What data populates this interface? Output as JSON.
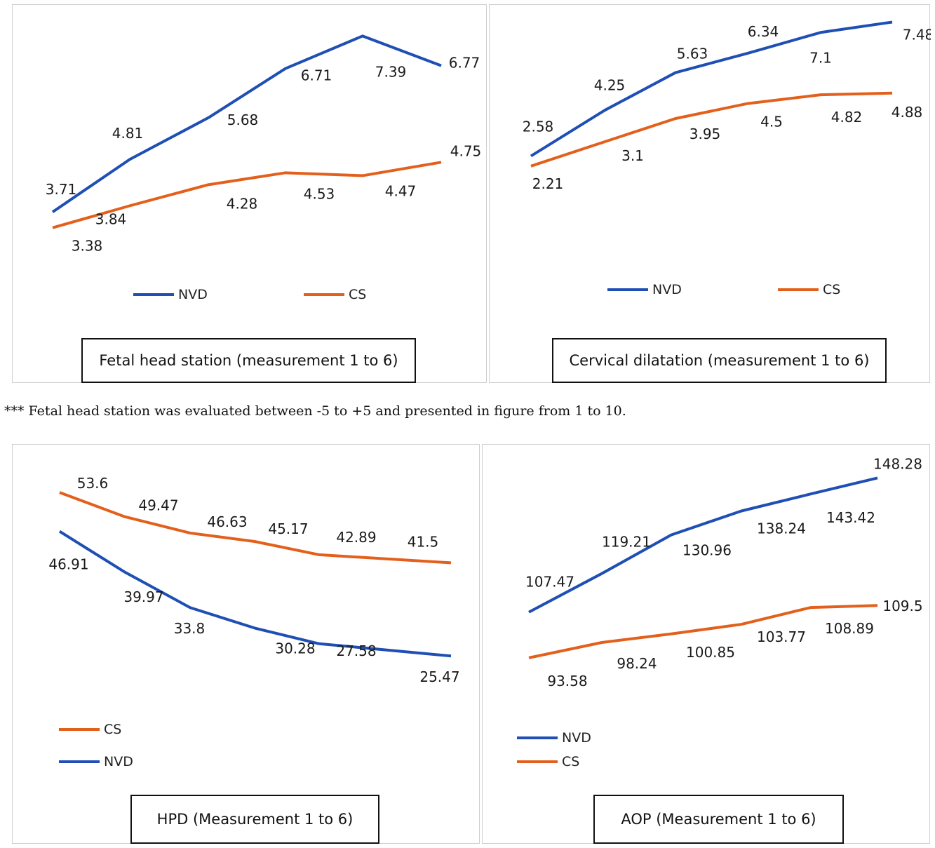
{
  "footnote": "*** Fetal head station was evaluated between -5 to +5 and presented in figure from 1 to 10.",
  "colors": {
    "NVD": "#1f4fb4",
    "CS": "#e3601c"
  },
  "chart_data": [
    {
      "id": "fetal",
      "type": "line",
      "title": "Fetal head station (measurement 1 to 6)",
      "x": [
        1,
        2,
        3,
        4,
        5,
        6
      ],
      "series": [
        {
          "name": "NVD",
          "values": [
            3.71,
            4.81,
            5.68,
            6.71,
            7.39,
            6.77
          ]
        },
        {
          "name": "CS",
          "values": [
            3.38,
            3.84,
            4.28,
            4.53,
            4.47,
            4.75
          ]
        }
      ],
      "legend": [
        "NVD",
        "CS"
      ],
      "legend_placement": "bottom",
      "grid": false
    },
    {
      "id": "cervical",
      "type": "line",
      "title": "Cervical dilatation (measurement 1 to 6)",
      "x": [
        1,
        2,
        3,
        4,
        5,
        6
      ],
      "series": [
        {
          "name": "NVD",
          "values": [
            2.58,
            4.25,
            5.63,
            6.34,
            7.1,
            7.48
          ]
        },
        {
          "name": "CS",
          "values": [
            2.21,
            3.1,
            3.95,
            4.5,
            4.82,
            4.88
          ]
        }
      ],
      "legend": [
        "NVD",
        "CS"
      ],
      "legend_placement": "bottom",
      "grid": false
    },
    {
      "id": "hpd",
      "type": "line",
      "title": "HPD (Measurement 1 to 6)",
      "x": [
        1,
        2,
        3,
        4,
        5,
        6
      ],
      "series": [
        {
          "name": "NVD",
          "values": [
            46.91,
            39.97,
            33.8,
            30.28,
            27.58,
            25.47
          ]
        },
        {
          "name": "CS",
          "values": [
            53.6,
            49.47,
            46.63,
            45.17,
            42.89,
            41.5
          ]
        }
      ],
      "legend": [
        "CS",
        "NVD"
      ],
      "legend_placement": "bottom-left",
      "grid": false
    },
    {
      "id": "aop",
      "type": "line",
      "title": "AOP (Measurement 1 to 6)",
      "x": [
        1,
        2,
        3,
        4,
        5,
        6
      ],
      "series": [
        {
          "name": "NVD",
          "values": [
            107.47,
            119.21,
            130.96,
            138.24,
            143.42,
            148.28
          ]
        },
        {
          "name": "CS",
          "values": [
            93.58,
            98.24,
            100.85,
            103.77,
            108.89,
            109.5
          ]
        }
      ],
      "legend": [
        "NVD",
        "CS"
      ],
      "legend_placement": "bottom-left",
      "grid": false
    }
  ]
}
